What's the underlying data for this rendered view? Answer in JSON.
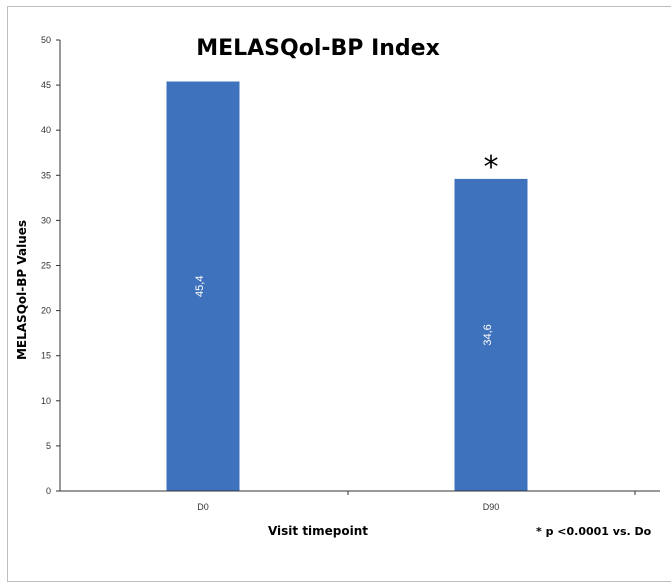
{
  "chart_data": {
    "type": "bar",
    "title": "MELASQol-BP Index",
    "xlabel": "Visit timepoint",
    "ylabel": "MELASQol-BP Values",
    "categories": [
      "D0",
      "D90"
    ],
    "values": [
      45.4,
      34.6
    ],
    "value_labels": [
      "45,4",
      "34,6"
    ],
    "ylim": [
      0,
      50
    ],
    "yticks": [
      0,
      5,
      10,
      15,
      20,
      25,
      30,
      35,
      40,
      45,
      50
    ],
    "bar_color": "#3f72bd",
    "grid": false,
    "significance_marker": "*",
    "significance_category": "D90",
    "footnote": "* p <0.0001 vs. Do"
  }
}
